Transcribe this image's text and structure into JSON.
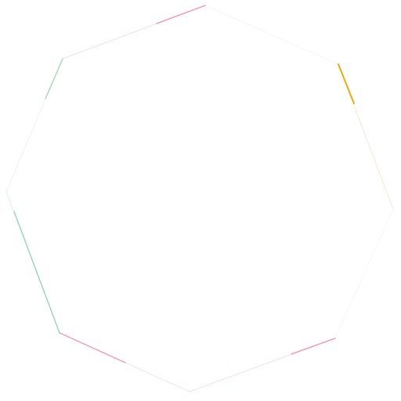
{
  "canvas": {
    "background": "#ffffff"
  },
  "shape": {
    "kind": "octagon-outline",
    "fill": "#ffffff",
    "colors": {
      "top_left_edge": "#f2b3c8",
      "top_right_edge": "#efe6f2",
      "right_upper_edge": "#e9c9b0",
      "right_lower_edge": "#e8eef0",
      "bottom_right_edge": "#f2b3c8",
      "bottom_left_edge": "#f4bfd2",
      "left_lower_edge": "#b8ddd6",
      "left_upper_edge": "#cfe6d8",
      "orange_accent": "#e9a300",
      "pink_accent": "#e87fa4",
      "teal_accent": "#7ec3b5",
      "green_accent": "#8ccf9d"
    }
  }
}
